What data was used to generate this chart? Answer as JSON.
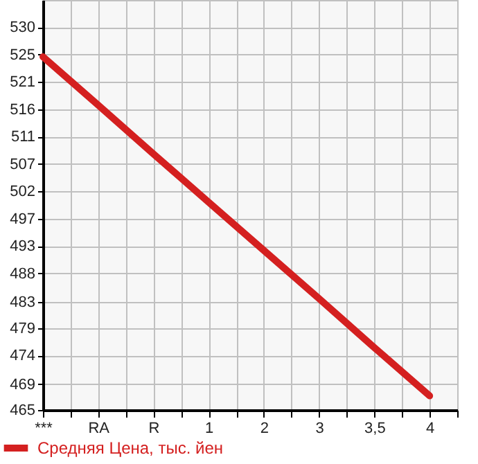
{
  "chart_data": {
    "type": "line",
    "categories": [
      "***",
      "RA",
      "R",
      "1",
      "2",
      "3",
      "3,5",
      "4"
    ],
    "series": [
      {
        "name": "Средняя Цена, тыс. йен",
        "color": "#d42020",
        "values": [
          525.0,
          516.8,
          508.5,
          500.3,
          492.1,
          483.9,
          475.6,
          467.4
        ]
      }
    ],
    "ylim": [
      465,
      534.64
    ],
    "yticks": [
      {
        "value": 465,
        "label": "465"
      },
      {
        "value": 469.4,
        "label": "469"
      },
      {
        "value": 474.29,
        "label": "474"
      },
      {
        "value": 478.93,
        "label": "479"
      },
      {
        "value": 483.4,
        "label": "483"
      },
      {
        "value": 488.21,
        "label": "488"
      },
      {
        "value": 492.86,
        "label": "493"
      },
      {
        "value": 497.5,
        "label": "497"
      },
      {
        "value": 502.14,
        "label": "502"
      },
      {
        "value": 506.79,
        "label": "507"
      },
      {
        "value": 511.43,
        "label": "511"
      },
      {
        "value": 516.07,
        "label": "516"
      },
      {
        "value": 520.71,
        "label": "521"
      },
      {
        "value": 525.36,
        "label": "525"
      },
      {
        "value": 530.0,
        "label": "530"
      }
    ],
    "grid": true,
    "legend": "bottom",
    "marker": "none",
    "line_style": "solid"
  }
}
